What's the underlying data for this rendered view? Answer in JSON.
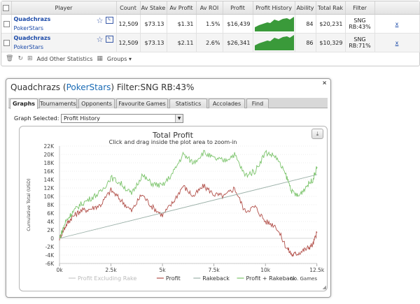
{
  "table": {
    "headers": [
      "",
      "Player",
      "Count",
      "Av Stake",
      "Av Profit",
      "Av ROI",
      "Profit",
      "Profit History",
      "Ability",
      "Total Rak",
      "Filter",
      ""
    ],
    "rows": [
      {
        "name": "Quadchrazs",
        "site": "PokerStars",
        "count": "12,509",
        "av_stake": "$73.13",
        "av_profit": "$1.31",
        "av_roi": "1.5%",
        "profit": "$16,439",
        "ability": "84",
        "total_rake": "$20,231",
        "filter_line1": "SNG",
        "filter_line2": "RB:43%",
        "action": "x"
      },
      {
        "name": "Quadchrazs",
        "site": "PokerStars",
        "count": "12,509",
        "av_stake": "$73.13",
        "av_profit": "$2.11",
        "av_roi": "2.6%",
        "profit": "$26,341",
        "ability": "86",
        "total_rake": "$10,329",
        "filter_line1": "SNG",
        "filter_line2": "RB:71%",
        "action": "x"
      }
    ],
    "footer": {
      "add_stats_label": "Add Other Statistics",
      "groups_label": "Groups ▾"
    }
  },
  "dialog": {
    "title_prefix": "Quadchrazs (",
    "title_site": "PokerStars",
    "title_suffix": ") Filter:SNG RB:43%",
    "close_label": "×",
    "tabs": [
      "Graphs",
      "Tournaments",
      "Opponents",
      "Favourite Games",
      "Statistics",
      "Accolades",
      "Find"
    ],
    "active_tab": "Graphs",
    "graph_selected_label": "Graph Selected:",
    "graph_selected_value": "Profit History"
  },
  "colors": {
    "profit": "#b2504a",
    "rakeback": "#9bb0a8",
    "profit_plus_rakeback": "#7cc46c",
    "excluding_rake": "#c8c8c8",
    "link": "#1a49a8",
    "sparkline": "#3a9a3a"
  },
  "chart_data": {
    "type": "line",
    "title": "Total Profit",
    "subtitle": "Click and drag inside the plot area to zoom-in",
    "ylabel": "Cumulative Total (USD)",
    "xlabel": "No. Games",
    "xlim": [
      0,
      12509
    ],
    "ylim": [
      -6000,
      22000
    ],
    "x_ticks": [
      "0k",
      "2.5k",
      "5k",
      "7.5k",
      "10k",
      "12.5k"
    ],
    "x_tick_values": [
      0,
      2500,
      5000,
      7500,
      10000,
      12500
    ],
    "y_ticks": [
      "22K",
      "20K",
      "18K",
      "16K",
      "14K",
      "12K",
      "10K",
      "8K",
      "6K",
      "4K",
      "2K",
      "0",
      "-2K",
      "-4K",
      "-6K"
    ],
    "y_tick_values": [
      22000,
      20000,
      18000,
      16000,
      14000,
      12000,
      10000,
      8000,
      6000,
      4000,
      2000,
      0,
      -2000,
      -4000,
      -6000
    ],
    "grid": true,
    "legend": "bottom",
    "series": [
      {
        "name": "Profit Excluding Rake",
        "x": [],
        "values": []
      },
      {
        "name": "Profit",
        "x": [
          0,
          300,
          600,
          1000,
          1500,
          2000,
          2500,
          3000,
          3500,
          4000,
          4500,
          5000,
          5500,
          6000,
          6500,
          7000,
          7500,
          8000,
          8500,
          9000,
          9500,
          10000,
          10500,
          11000,
          11300,
          11600,
          12000,
          12300,
          12509
        ],
        "values": [
          0,
          3000,
          5000,
          6500,
          7000,
          8000,
          11500,
          9000,
          6500,
          10500,
          7500,
          5500,
          8500,
          12500,
          10000,
          12500,
          10500,
          10000,
          12000,
          6500,
          7500,
          4000,
          3000,
          -2000,
          -4000,
          -3500,
          -2500,
          -1500,
          1500
        ]
      },
      {
        "name": "Rakeback",
        "x": [
          0,
          12509
        ],
        "values": [
          0,
          15200
        ]
      },
      {
        "name": "Profit + Rakeback",
        "x": [
          0,
          300,
          600,
          1000,
          1500,
          2000,
          2500,
          3000,
          3500,
          4000,
          4500,
          5000,
          5500,
          6000,
          6500,
          7000,
          7500,
          8000,
          8500,
          9000,
          9500,
          10000,
          10500,
          11000,
          11300,
          11600,
          12000,
          12300,
          12509
        ],
        "values": [
          0,
          4000,
          6000,
          8000,
          9500,
          11000,
          14500,
          13000,
          10500,
          15000,
          13000,
          12500,
          15500,
          20000,
          18000,
          20500,
          19000,
          18500,
          20000,
          15000,
          16000,
          20500,
          19500,
          15000,
          11000,
          10000,
          12500,
          14000,
          17000
        ]
      }
    ]
  }
}
